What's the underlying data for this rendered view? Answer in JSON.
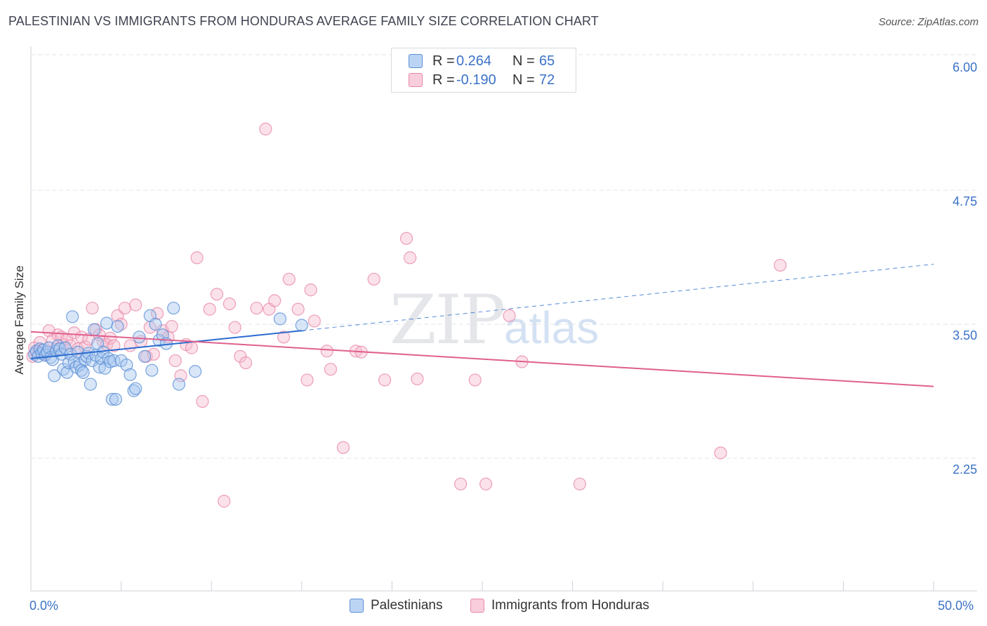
{
  "title": "PALESTINIAN VS IMMIGRANTS FROM HONDURAS AVERAGE FAMILY SIZE CORRELATION CHART",
  "source": "Source: ZipAtlas.com",
  "watermark": {
    "zip": "ZIP",
    "atlas": "atlas"
  },
  "legend": {
    "r_label": "R =",
    "n_label": "N =",
    "rows": [
      {
        "r": "0.264",
        "n": "65"
      },
      {
        "r": "-0.190",
        "n": "72"
      }
    ]
  },
  "colors": {
    "blue_fill": "#a8c8f0",
    "blue_stroke": "#5b8fd6",
    "blue_line": "#2a6bcf",
    "pink_fill": "#f7bcd0",
    "pink_stroke": "#e88aa8",
    "pink_line": "#e0608e",
    "tick_text": "#3b72c8",
    "grid": "#e3e5ea"
  },
  "chart_data": {
    "type": "scatter",
    "title": "PALESTINIAN VS IMMIGRANTS FROM HONDURAS AVERAGE FAMILY SIZE CORRELATION CHART",
    "xlabel": "",
    "ylabel": "Average Family Size",
    "xlim": [
      0,
      50
    ],
    "ylim": [
      1.0,
      6.1
    ],
    "x_tick_labels": [
      {
        "value": 0,
        "label": "0.0%"
      },
      {
        "value": 50,
        "label": "50.0%"
      }
    ],
    "y_ticks": [
      {
        "value": 2.25,
        "label": "2.25"
      },
      {
        "value": 3.5,
        "label": "3.50"
      },
      {
        "value": 4.75,
        "label": "4.75"
      },
      {
        "value": 6.0,
        "label": "6.00"
      }
    ],
    "legend_position": "top-center",
    "series": [
      {
        "name": "Palestinians",
        "r": 0.264,
        "n": 65,
        "trend": {
          "x0": 0,
          "y0": 3.18,
          "x1": 15,
          "y1": 3.44,
          "dash_x1": 50,
          "dash_y1": 4.06
        },
        "points": [
          [
            0.2,
            3.22
          ],
          [
            0.3,
            3.25
          ],
          [
            0.4,
            3.2
          ],
          [
            0.5,
            3.27
          ],
          [
            0.6,
            3.23
          ],
          [
            0.7,
            3.26
          ],
          [
            0.8,
            3.21
          ],
          [
            0.9,
            3.24
          ],
          [
            1.0,
            3.28
          ],
          [
            1.1,
            3.19
          ],
          [
            1.2,
            3.17
          ],
          [
            1.3,
            3.02
          ],
          [
            1.4,
            3.25
          ],
          [
            1.5,
            3.3
          ],
          [
            1.6,
            3.27
          ],
          [
            1.7,
            3.22
          ],
          [
            1.8,
            3.08
          ],
          [
            1.9,
            3.28
          ],
          [
            2.0,
            3.05
          ],
          [
            2.1,
            3.14
          ],
          [
            2.2,
            3.22
          ],
          [
            2.3,
            3.57
          ],
          [
            2.4,
            3.15
          ],
          [
            2.5,
            3.1
          ],
          [
            2.6,
            3.24
          ],
          [
            2.7,
            3.12
          ],
          [
            2.8,
            3.07
          ],
          [
            2.9,
            3.05
          ],
          [
            3.0,
            3.17
          ],
          [
            3.1,
            3.2
          ],
          [
            3.2,
            3.23
          ],
          [
            3.3,
            2.94
          ],
          [
            3.4,
            3.16
          ],
          [
            3.5,
            3.45
          ],
          [
            3.6,
            3.21
          ],
          [
            3.7,
            3.32
          ],
          [
            3.8,
            3.1
          ],
          [
            3.9,
            3.18
          ],
          [
            4.0,
            3.24
          ],
          [
            4.1,
            3.09
          ],
          [
            4.2,
            3.51
          ],
          [
            4.3,
            3.18
          ],
          [
            4.4,
            3.15
          ],
          [
            4.5,
            2.8
          ],
          [
            4.6,
            3.16
          ],
          [
            4.7,
            2.8
          ],
          [
            4.8,
            3.48
          ],
          [
            5.0,
            3.16
          ],
          [
            5.3,
            3.12
          ],
          [
            5.5,
            3.03
          ],
          [
            5.7,
            2.88
          ],
          [
            5.8,
            2.9
          ],
          [
            6.0,
            3.38
          ],
          [
            6.3,
            3.2
          ],
          [
            6.6,
            3.58
          ],
          [
            6.7,
            3.07
          ],
          [
            6.9,
            3.5
          ],
          [
            7.1,
            3.35
          ],
          [
            7.3,
            3.4
          ],
          [
            7.5,
            3.32
          ],
          [
            7.9,
            3.65
          ],
          [
            8.2,
            2.94
          ],
          [
            9.1,
            3.06
          ],
          [
            13.8,
            3.55
          ],
          [
            15.0,
            3.49
          ]
        ]
      },
      {
        "name": "Immigrants from Honduras",
        "r": -0.19,
        "n": 72,
        "trend": {
          "x0": 0,
          "y0": 3.43,
          "x1": 50,
          "y1": 2.92
        },
        "points": [
          [
            0.1,
            3.2
          ],
          [
            0.2,
            3.28
          ],
          [
            0.3,
            3.24
          ],
          [
            0.5,
            3.33
          ],
          [
            0.6,
            3.26
          ],
          [
            0.8,
            3.22
          ],
          [
            1.0,
            3.44
          ],
          [
            1.2,
            3.35
          ],
          [
            1.4,
            3.27
          ],
          [
            1.5,
            3.4
          ],
          [
            1.7,
            3.38
          ],
          [
            1.8,
            3.31
          ],
          [
            2.0,
            3.36
          ],
          [
            2.2,
            3.3
          ],
          [
            2.4,
            3.42
          ],
          [
            2.6,
            3.27
          ],
          [
            2.8,
            3.38
          ],
          [
            3.0,
            3.29
          ],
          [
            3.2,
            3.36
          ],
          [
            3.4,
            3.65
          ],
          [
            3.6,
            3.45
          ],
          [
            3.8,
            3.4
          ],
          [
            4.0,
            3.34
          ],
          [
            4.2,
            3.31
          ],
          [
            4.4,
            3.37
          ],
          [
            4.6,
            3.3
          ],
          [
            4.8,
            3.58
          ],
          [
            5.0,
            3.5
          ],
          [
            5.2,
            3.65
          ],
          [
            5.5,
            3.3
          ],
          [
            5.8,
            3.68
          ],
          [
            6.1,
            3.34
          ],
          [
            6.4,
            3.2
          ],
          [
            6.6,
            3.47
          ],
          [
            6.8,
            3.22
          ],
          [
            7.0,
            3.6
          ],
          [
            7.3,
            3.44
          ],
          [
            7.6,
            3.38
          ],
          [
            7.8,
            3.48
          ],
          [
            8.0,
            3.16
          ],
          [
            8.3,
            3.02
          ],
          [
            8.6,
            3.31
          ],
          [
            8.9,
            3.28
          ],
          [
            9.2,
            4.12
          ],
          [
            9.5,
            2.78
          ],
          [
            9.9,
            3.64
          ],
          [
            10.3,
            3.78
          ],
          [
            10.7,
            1.85
          ],
          [
            11.0,
            3.69
          ],
          [
            11.3,
            3.47
          ],
          [
            11.6,
            3.2
          ],
          [
            11.9,
            3.14
          ],
          [
            12.5,
            3.65
          ],
          [
            13.0,
            5.32
          ],
          [
            13.2,
            3.64
          ],
          [
            13.5,
            3.72
          ],
          [
            14.0,
            3.38
          ],
          [
            14.3,
            3.92
          ],
          [
            14.8,
            3.64
          ],
          [
            15.3,
            2.98
          ],
          [
            15.5,
            3.82
          ],
          [
            15.7,
            3.53
          ],
          [
            16.4,
            3.25
          ],
          [
            16.6,
            3.08
          ],
          [
            17.3,
            2.35
          ],
          [
            18.0,
            3.25
          ],
          [
            18.3,
            3.24
          ],
          [
            19.6,
            2.98
          ],
          [
            20.8,
            4.3
          ],
          [
            21.4,
            2.99
          ],
          [
            23.8,
            2.01
          ],
          [
            26.5,
            3.58
          ]
        ]
      }
    ]
  },
  "extra_pink_points": [
    [
      25.2,
      2.01
    ],
    [
      27.2,
      3.15
    ],
    [
      30.4,
      2.01
    ],
    [
      38.2,
      2.3
    ],
    [
      41.5,
      4.05
    ],
    [
      19.0,
      3.92
    ],
    [
      21.0,
      4.12
    ],
    [
      24.6,
      2.98
    ]
  ],
  "bottom_legend": {
    "items": [
      "Palestinians",
      "Immigrants from Honduras"
    ]
  }
}
